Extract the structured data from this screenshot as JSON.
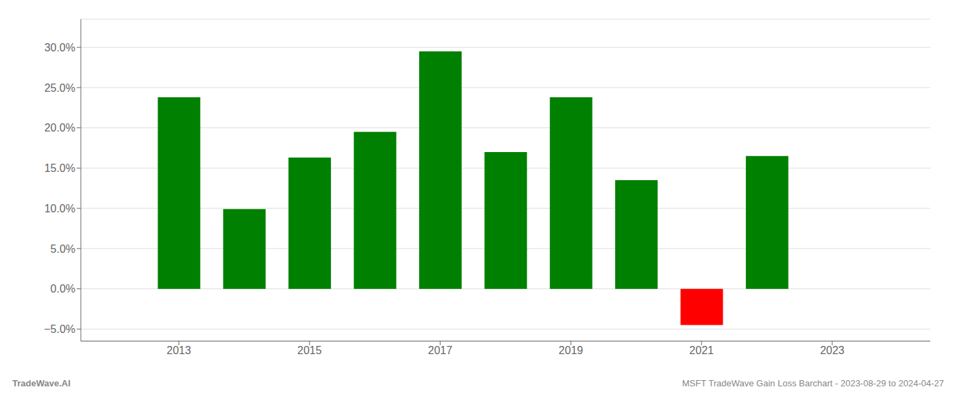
{
  "chart_data": {
    "type": "bar",
    "x": [
      2013,
      2014,
      2015,
      2016,
      2017,
      2018,
      2019,
      2020,
      2021,
      2022
    ],
    "values": [
      0.238,
      0.099,
      0.163,
      0.195,
      0.295,
      0.17,
      0.238,
      0.135,
      -0.045,
      0.165
    ],
    "colors": [
      "#008000",
      "#008000",
      "#008000",
      "#008000",
      "#008000",
      "#008000",
      "#008000",
      "#008000",
      "#ff0000",
      "#008000"
    ],
    "xlim": [
      2011.5,
      2024.5
    ],
    "xticks": [
      2013,
      2015,
      2017,
      2019,
      2021,
      2023
    ],
    "ylim": [
      -0.065,
      0.335
    ],
    "yticks": [
      {
        "value": -0.05,
        "label": "−5.0%"
      },
      {
        "value": 0.0,
        "label": "0.0%"
      },
      {
        "value": 0.05,
        "label": "5.0%"
      },
      {
        "value": 0.1,
        "label": "10.0%"
      },
      {
        "value": 0.15,
        "label": "15.0%"
      },
      {
        "value": 0.2,
        "label": "20.0%"
      },
      {
        "value": 0.25,
        "label": "25.0%"
      },
      {
        "value": 0.3,
        "label": "30.0%"
      }
    ],
    "grid": true,
    "annotations": [
      "TradeWave.AI",
      "MSFT TradeWave Gain Loss Barchart - 2023-08-29 to 2024-04-27"
    ]
  }
}
